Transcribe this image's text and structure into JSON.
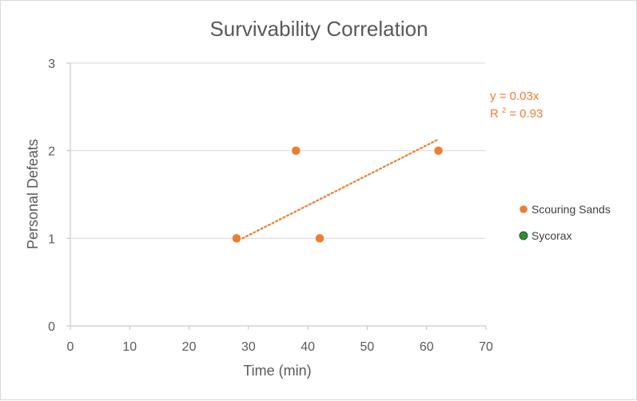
{
  "chart_data": {
    "type": "scatter",
    "title": "Survivability Correlation",
    "xlabel": "Time (min)",
    "ylabel": "Personal Defeats",
    "xlim": [
      0,
      70
    ],
    "ylim": [
      0,
      3
    ],
    "x_ticks": [
      0,
      10,
      20,
      30,
      40,
      50,
      60,
      70
    ],
    "y_ticks": [
      0,
      1,
      2,
      3
    ],
    "grid": true,
    "legend_position": "right",
    "series": [
      {
        "name": "Scouring Sands",
        "color": "#ED7D31",
        "points": [
          {
            "x": 28,
            "y": 1
          },
          {
            "x": 38,
            "y": 2
          },
          {
            "x": 42,
            "y": 1
          },
          {
            "x": 62,
            "y": 2
          }
        ],
        "trendline": {
          "type": "linear",
          "color": "#ED7D31",
          "x_range": [
            29,
            62
          ],
          "y_range": [
            1,
            2.13
          ],
          "equation": "y = 0.03x",
          "r2_prefix": "R",
          "r2_sup": "2",
          "r2_value": " = 0.93"
        }
      },
      {
        "name": "Sycorax",
        "color": "#2E8B3A",
        "points": []
      }
    ]
  }
}
